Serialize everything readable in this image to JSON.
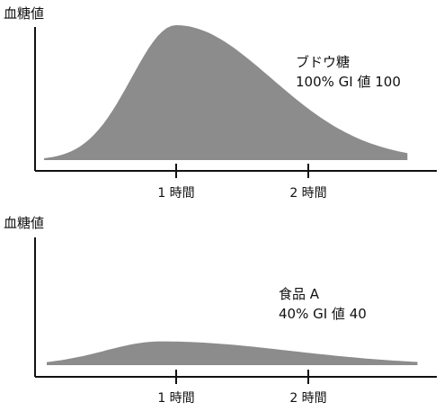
{
  "chart_data": [
    {
      "type": "area",
      "ylabel": "血糖値",
      "xlabel": "",
      "x_ticks": [
        {
          "x": 1,
          "label": "1 時間"
        },
        {
          "x": 2,
          "label": "2 時間"
        }
      ],
      "x": [
        0.0,
        1.0,
        2.0,
        2.75
      ],
      "peak": {
        "x": 1.0,
        "y": 1.0
      },
      "curve_start": {
        "x": 0.0,
        "y": 0.0
      },
      "curve_end": {
        "x": 2.75,
        "y": 0.04
      },
      "color": "#8c8c8c",
      "annotation": [
        "ブドウ糖",
        "100% GI 値 100"
      ]
    },
    {
      "type": "area",
      "ylabel": "血糖値",
      "xlabel": "",
      "x_ticks": [
        {
          "x": 1,
          "label": "1 時間"
        },
        {
          "x": 2,
          "label": "2 時間"
        }
      ],
      "x": [
        0.0,
        0.85,
        2.0,
        2.75
      ],
      "peak": {
        "x": 0.85,
        "y": 0.4
      },
      "curve_start": {
        "x": 0.0,
        "y": 0.0
      },
      "curve_end": {
        "x": 2.75,
        "y": 0.0
      },
      "color": "#8c8c8c",
      "annotation": [
        "食品 A",
        "40% GI 値 40"
      ]
    }
  ]
}
